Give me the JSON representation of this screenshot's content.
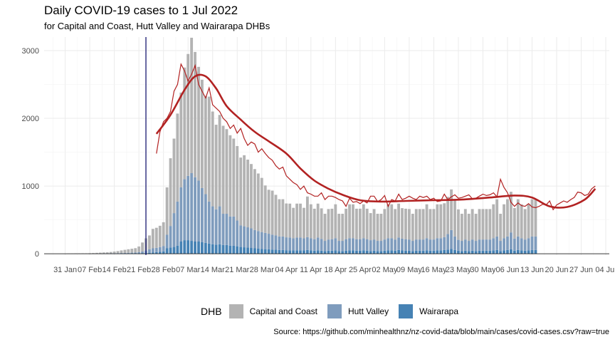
{
  "chart_data": {
    "type": "bar",
    "stacked": true,
    "title": "Daily COVID-19 cases to 1 Jul 2022",
    "subtitle": "for Capital and Coast, Hutt Valley and Wairarapa DHBs",
    "caption": "Source: https://github.com/minhealthnz/nz-covid-data/blob/main/cases/covid-cases.csv?raw=true",
    "legend_title": "DHB",
    "legend_position": "bottom",
    "grid": true,
    "x_range": [
      "2022-01-25",
      "2022-07-05"
    ],
    "ylim": [
      -20,
      3200
    ],
    "yticks": [
      0,
      1000,
      2000,
      3000
    ],
    "ytick_labels": [
      "0",
      "1000",
      "2000",
      "3000"
    ],
    "xticks": [
      "2022-01-31",
      "2022-02-07",
      "2022-02-14",
      "2022-02-21",
      "2022-02-28",
      "2022-03-07",
      "2022-03-14",
      "2022-03-21",
      "2022-03-28",
      "2022-04-04",
      "2022-04-11",
      "2022-04-18",
      "2022-04-25",
      "2022-05-02",
      "2022-05-09",
      "2022-05-16",
      "2022-05-23",
      "2022-05-30",
      "2022-06-06",
      "2022-06-13",
      "2022-06-20",
      "2022-06-27",
      "2022-07-04"
    ],
    "xtick_labels": [
      "31 Jan",
      "07 Feb",
      "14 Feb",
      "21 Feb",
      "28 Feb",
      "07 Mar",
      "14 Mar",
      "21 Mar",
      "28 Mar",
      "04 Apr",
      "11 Apr",
      "18 Apr",
      "25 Apr",
      "02 May",
      "09 May",
      "16 May",
      "23 May",
      "30 May",
      "06 Jun",
      "13 Jun",
      "20 Jun",
      "27 Jun",
      "04 Jul"
    ],
    "reference_line_date": "2022-02-23",
    "colors": {
      "Capital and Coast": "#b3b3b3",
      "Hutt Valley": "#7f9cbd",
      "Wairarapa": "#4682b4",
      "trend": "#b22222",
      "reference": "#191970"
    },
    "start_date": "2022-01-31",
    "series": [
      {
        "name": "Capital and Coast",
        "values": [
          2,
          3,
          3,
          4,
          4,
          5,
          5,
          6,
          8,
          10,
          12,
          14,
          16,
          20,
          24,
          30,
          38,
          46,
          52,
          58,
          64,
          84,
          134,
          180,
          205,
          287,
          296,
          315,
          350,
          700,
          1000,
          1100,
          1300,
          1400,
          1650,
          1800,
          2000,
          1850,
          1680,
          1600,
          1450,
          1550,
          1400,
          1250,
          1350,
          1300,
          1250,
          1200,
          1150,
          1100,
          1000,
          1050,
          1000,
          950,
          900,
          850,
          800,
          700,
          650,
          650,
          600,
          550,
          550,
          500,
          500,
          450,
          500,
          500,
          450,
          600,
          500,
          450,
          500,
          450,
          400,
          450,
          450,
          500,
          400,
          400,
          450,
          500,
          500,
          450,
          450,
          500,
          450,
          400,
          450,
          400,
          400,
          450,
          500,
          500,
          450,
          500,
          450,
          450,
          450,
          400,
          450,
          450,
          450,
          500,
          450,
          450,
          500,
          500,
          500,
          550,
          600,
          550,
          450,
          400,
          450,
          400,
          450,
          400,
          450,
          450,
          450,
          450,
          500,
          550,
          400,
          500,
          550,
          600,
          450,
          550,
          500,
          450,
          500,
          550,
          550
        ]
      },
      {
        "name": "Hutt Valley",
        "values": [
          0,
          0,
          0,
          1,
          1,
          1,
          1,
          2,
          2,
          3,
          3,
          4,
          4,
          5,
          6,
          7,
          8,
          9,
          10,
          11,
          12,
          15,
          22,
          35,
          50,
          60,
          63,
          70,
          80,
          200,
          320,
          500,
          650,
          800,
          900,
          950,
          1000,
          950,
          900,
          800,
          720,
          620,
          560,
          520,
          560,
          460,
          460,
          430,
          430,
          380,
          320,
          310,
          300,
          290,
          270,
          260,
          250,
          240,
          230,
          220,
          210,
          200,
          200,
          190,
          190,
          180,
          190,
          190,
          180,
          190,
          180,
          170,
          190,
          175,
          150,
          165,
          170,
          180,
          150,
          150,
          170,
          180,
          180,
          170,
          170,
          180,
          170,
          160,
          165,
          150,
          150,
          165,
          180,
          180,
          165,
          185,
          175,
          170,
          165,
          150,
          165,
          165,
          165,
          180,
          165,
          165,
          180,
          180,
          190,
          230,
          280,
          200,
          160,
          150,
          165,
          150,
          165,
          150,
          165,
          165,
          165,
          165,
          180,
          200,
          150,
          180,
          200,
          250,
          180,
          200,
          180,
          165,
          180,
          200,
          200
        ]
      },
      {
        "name": "Wairarapa",
        "values": [
          0,
          0,
          0,
          0,
          0,
          0,
          0,
          0,
          0,
          0,
          1,
          1,
          1,
          1,
          2,
          2,
          3,
          3,
          4,
          5,
          6,
          8,
          10,
          12,
          15,
          20,
          24,
          28,
          35,
          80,
          90,
          100,
          120,
          180,
          200,
          200,
          190,
          180,
          180,
          170,
          160,
          150,
          140,
          135,
          140,
          130,
          130,
          120,
          120,
          110,
          100,
          95,
          90,
          85,
          80,
          75,
          70,
          68,
          65,
          62,
          60,
          55,
          55,
          52,
          50,
          48,
          50,
          50,
          48,
          55,
          50,
          45,
          50,
          45,
          40,
          45,
          45,
          50,
          40,
          40,
          45,
          50,
          50,
          45,
          45,
          50,
          45,
          40,
          45,
          40,
          40,
          45,
          50,
          50,
          45,
          55,
          48,
          45,
          45,
          40,
          45,
          45,
          45,
          50,
          45,
          45,
          50,
          50,
          55,
          60,
          70,
          55,
          45,
          40,
          45,
          40,
          45,
          40,
          45,
          45,
          45,
          45,
          50,
          55,
          40,
          50,
          55,
          65,
          45,
          55,
          50,
          45,
          50,
          55,
          55
        ]
      }
    ],
    "trend_raw": {
      "start_date": "2022-02-26",
      "values": [
        1480,
        1800,
        1950,
        2000,
        2100,
        2400,
        2500,
        2800,
        2700,
        2550,
        2650,
        2780,
        2500,
        2400,
        2300,
        2450,
        2200,
        2150,
        2100,
        2000,
        1950,
        1850,
        1900,
        1780,
        1850,
        1700,
        1600,
        1650,
        1620,
        1500,
        1550,
        1480,
        1420,
        1380,
        1300,
        1250,
        1280,
        1150,
        1100,
        1050,
        1020,
        950,
        1000,
        900,
        880,
        850,
        850,
        900,
        800,
        850,
        850,
        830,
        800,
        780,
        700,
        820,
        760,
        770,
        740,
        780,
        750,
        850,
        850,
        770,
        800,
        860,
        700,
        800,
        780,
        880,
        800,
        820,
        850,
        820,
        800,
        850,
        830,
        850,
        800,
        820,
        770,
        780,
        880,
        800,
        840,
        870,
        820,
        830,
        850,
        870,
        810,
        820,
        850,
        880,
        860,
        870,
        900,
        840,
        1100,
        980,
        900,
        760,
        700,
        750,
        710,
        700,
        740,
        690,
        680,
        700,
        730,
        720,
        780,
        650,
        720,
        750,
        780,
        760,
        800,
        830,
        910,
        900,
        860,
        880,
        960,
        1000
      ]
    },
    "trend_smooth": {
      "dates": [
        "2022-02-26",
        "2022-03-02",
        "2022-03-06",
        "2022-03-09",
        "2022-03-12",
        "2022-03-15",
        "2022-03-18",
        "2022-03-22",
        "2022-03-26",
        "2022-03-30",
        "2022-04-04",
        "2022-04-08",
        "2022-04-12",
        "2022-04-16",
        "2022-04-20",
        "2022-04-25",
        "2022-05-01",
        "2022-05-08",
        "2022-05-16",
        "2022-05-24",
        "2022-06-01",
        "2022-06-08",
        "2022-06-13",
        "2022-06-18",
        "2022-06-23",
        "2022-06-28",
        "2022-07-01"
      ],
      "values": [
        1770,
        2050,
        2420,
        2620,
        2620,
        2440,
        2180,
        1980,
        1800,
        1660,
        1480,
        1260,
        1080,
        960,
        870,
        790,
        770,
        780,
        790,
        800,
        830,
        860,
        830,
        700,
        690,
        800,
        960
      ]
    }
  }
}
